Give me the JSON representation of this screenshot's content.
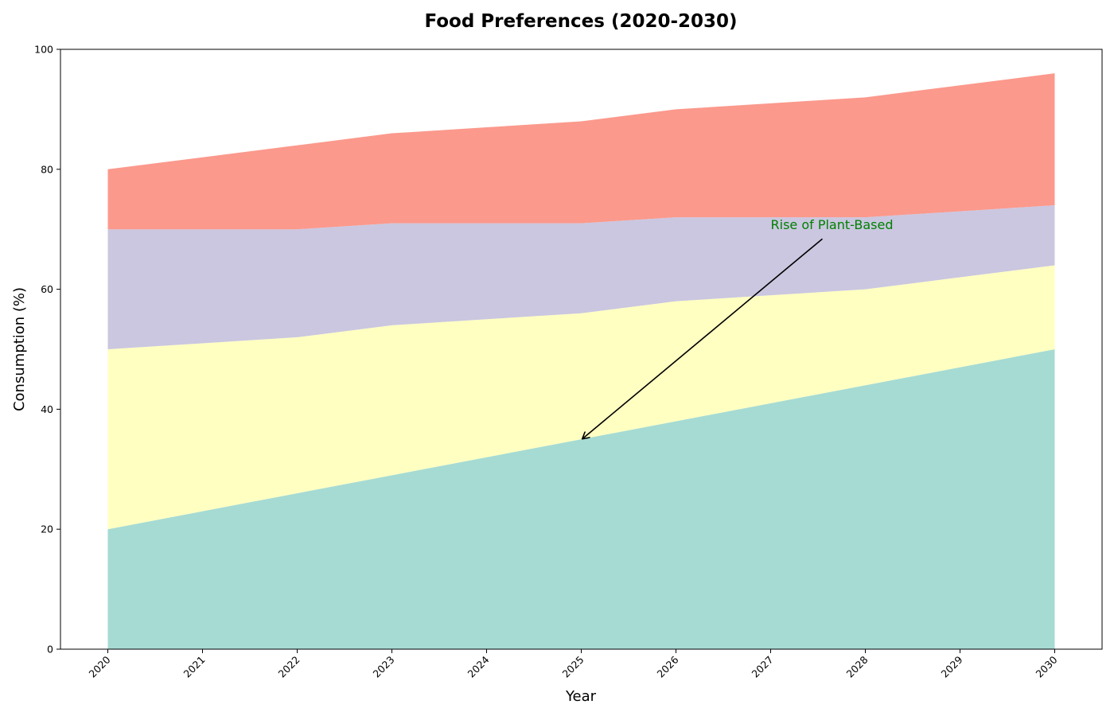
{
  "chart_data": {
    "type": "area",
    "stacked": true,
    "title": "Food Preferences (2020-2030)",
    "xlabel": "Year",
    "ylabel": "Consumption (%)",
    "x": [
      2020,
      2021,
      2022,
      2023,
      2024,
      2025,
      2026,
      2027,
      2028,
      2029,
      2030
    ],
    "xticks": [
      "2020",
      "2021",
      "2022",
      "2023",
      "2024",
      "2025",
      "2026",
      "2027",
      "2028",
      "2029",
      "2030"
    ],
    "yticks": [
      0,
      20,
      40,
      60,
      80,
      100
    ],
    "ylim": [
      0,
      100
    ],
    "xlim": [
      2019.5,
      2030.5
    ],
    "grid": false,
    "legend": "none",
    "series": [
      {
        "values": [
          20,
          23,
          26,
          29,
          32,
          35,
          38,
          41,
          44,
          47,
          50
        ],
        "color": "#a6dbd3"
      },
      {
        "values": [
          30,
          28,
          26,
          25,
          23,
          21,
          20,
          18,
          16,
          15,
          14
        ],
        "color": "#ffffc2"
      },
      {
        "values": [
          20,
          19,
          18,
          17,
          16,
          15,
          14,
          13,
          12,
          11,
          10
        ],
        "color": "#cbc7e0"
      },
      {
        "values": [
          10,
          12,
          14,
          15,
          16,
          17,
          18,
          19,
          20,
          21,
          22
        ],
        "color": "#fb998c"
      }
    ],
    "annotation": {
      "text": "Rise of Plant-Based",
      "color": "#008000",
      "point": [
        2025,
        35
      ],
      "text_at": [
        2027,
        70
      ]
    }
  }
}
